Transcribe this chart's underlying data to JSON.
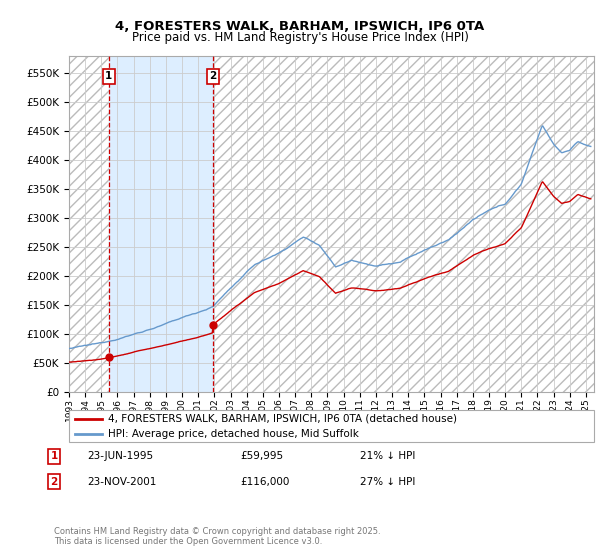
{
  "title": "4, FORESTERS WALK, BARHAM, IPSWICH, IP6 0TA",
  "subtitle": "Price paid vs. HM Land Registry's House Price Index (HPI)",
  "ylim": [
    0,
    580000
  ],
  "yticks": [
    0,
    50000,
    100000,
    150000,
    200000,
    250000,
    300000,
    350000,
    400000,
    450000,
    500000,
    550000
  ],
  "xmin": 1993.0,
  "xmax": 2025.5,
  "background_color": "#ffffff",
  "grid_color": "#cccccc",
  "sale1_date": 1995.47,
  "sale1_price": 59995,
  "sale1_label": "1",
  "sale2_date": 2001.9,
  "sale2_price": 116000,
  "sale2_label": "2",
  "sale_color": "#cc0000",
  "vline_color": "#cc0000",
  "hpi_color": "#6699cc",
  "shade_color": "#ddeeff",
  "legend_house": "4, FORESTERS WALK, BARHAM, IPSWICH, IP6 0TA (detached house)",
  "legend_hpi": "HPI: Average price, detached house, Mid Suffolk",
  "footnote": "Contains HM Land Registry data © Crown copyright and database right 2025.\nThis data is licensed under the Open Government Licence v3.0.",
  "annotation1_date": "23-JUN-1995",
  "annotation1_price": "£59,995",
  "annotation1_hpi": "21% ↓ HPI",
  "annotation2_date": "23-NOV-2001",
  "annotation2_price": "£116,000",
  "annotation2_hpi": "27% ↓ HPI"
}
